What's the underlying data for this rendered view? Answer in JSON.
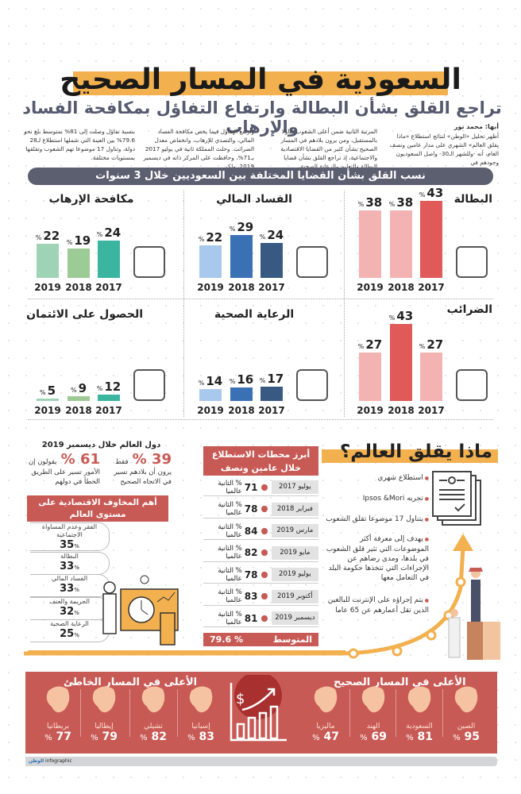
{
  "header": {
    "title": "السعودية في المسار الصحيح",
    "subtitle": "تراجع القلق بشأن البطالة وارتفاع التفاؤل بمكافحة الفساد والإرهاب"
  },
  "article": {
    "byline": "أبها: محمد نور",
    "paragraphs": [
      "أظهر تحليل «الوطن» لنتائج استطلاع «ماذا يقلق العالم» الشهري على مدار عامين ونصف العام، أنه -وللشهر الـ30- واصل السعوديون وجودهم في",
      "المرتبة الثانية ضمن أعلى الشعوب تفاؤلا بالمستقبل، ومن يرون بلادهم في المسار الصحيح بشأن كثير من القضايا الاقتصادية والاجتماعية، إذ تراجع القلق بشأن قضايا البطالة والتعليم والرعاية الصحية،",
      "وارتفع التفاؤل فيما يخص مكافحة الفساد المالي، والتصدي للإرهاب، وانخفاض معدل الضرائب. وحلت المملكة ثانية في يوليو 2017 بـ71%، وحافظت على المركز ذاته في ديسمبر 2019، ولكن",
      "بنسبة تفاؤل وصلت إلى 81% بمتوسط بلغ نحو 79.6% بين العينة التي شملها استطلاع لـ28 دولة، وتناول 17 موضوعا تهم الشعوب وتقلقها بمستويات مختلفة."
    ]
  },
  "chart_section_title": "نسب القلق بشأن القضايا المختلفة بين السعوديين خلال 3 سنوات",
  "chart_data": [
    {
      "type": "bar",
      "title": "البطالة",
      "categories": [
        "2019",
        "2018",
        "2017"
      ],
      "values": [
        38,
        38,
        43
      ],
      "unit": "%",
      "colors": [
        "#f4b3b3",
        "#f4b3b3",
        "#e05a5a"
      ],
      "icon": "office-worker-icon"
    },
    {
      "type": "bar",
      "title": "الفساد المالي",
      "categories": [
        "2019",
        "2018",
        "2017"
      ],
      "values": [
        22,
        29,
        24
      ],
      "unit": "%",
      "colors": [
        "#a8c9ec",
        "#3a70b4",
        "#385a82"
      ],
      "icon": "handcuffs-money-bag-icon"
    },
    {
      "type": "bar",
      "title": "مكافحة الإرهاب",
      "categories": [
        "2019",
        "2018",
        "2017"
      ],
      "values": [
        22,
        19,
        24
      ],
      "unit": "%",
      "colors": [
        "#9fd3b5",
        "#9ccb95",
        "#3bb5a0"
      ],
      "icon": "terrorist-dynamite-icon"
    },
    {
      "type": "bar",
      "title": "الضرائب",
      "categories": [
        "2019",
        "2018",
        "2017"
      ],
      "values": [
        27,
        43,
        27
      ],
      "unit": "%",
      "colors": [
        "#f4b3b3",
        "#e05a5a",
        "#f4b3b3"
      ],
      "icon": "tax-document-icon"
    },
    {
      "type": "bar",
      "title": "الرعاية الصحية",
      "categories": [
        "2019",
        "2018",
        "2017"
      ],
      "values": [
        14,
        16,
        17
      ],
      "unit": "%",
      "colors": [
        "#a8c9ec",
        "#3a70b4",
        "#385a82"
      ],
      "icon": "stethoscope-icon"
    },
    {
      "type": "bar",
      "title": "الحصول على الائتمان",
      "categories": [
        "2019",
        "2018",
        "2017"
      ],
      "values": [
        5,
        9,
        12
      ],
      "unit": "%",
      "colors": [
        "#9fd3b5",
        "#9ccb95",
        "#3bb5a0"
      ],
      "icon": "credit-card-coin-icon"
    }
  ],
  "world": {
    "title": "ماذا يقلق العالم؟",
    "bullets": [
      "استطلاع شهري",
      "تجريه Ipsos &Mori",
      "يتناول 17 موضوعا تقلق الشعوب",
      "يهدف إلى معرفة أكثر الموضوعات التي تثير قلق الشعوب في بلدها، ومدى رضاهم عن الإجراءات التي تتخذها حكومة البلد في التعامل معها",
      "يتم إجراؤه على الإنترنت للبالغين الذين تقل أعمارهم عن 65 عاما"
    ]
  },
  "survey_table": {
    "title": "أبرز محطات الاستطلاع خلال عامين ونصف",
    "suffix": "% الثانية عالميا",
    "rows": [
      {
        "date": "يوليو 2017",
        "value": "71"
      },
      {
        "date": "فبراير 2018",
        "value": "78"
      },
      {
        "date": "مارس 2019",
        "value": "84"
      },
      {
        "date": "مايو 2019",
        "value": "82"
      },
      {
        "date": "يوليو 2019",
        "value": "78"
      },
      {
        "date": "أكتوبر 2019",
        "value": "83"
      },
      {
        "date": "ديسمبر 2019",
        "value": "81"
      }
    ],
    "average_label": "المتوسط",
    "average_value": "% 79.6"
  },
  "december": {
    "title": "دول العالم خلال ديسمبر 2019",
    "right": {
      "value": "39 %",
      "label": "فقط",
      "text1": "يرون أن بلادهم تسير",
      "text2": "في الاتجاه الصحيح"
    },
    "left": {
      "value": "61 %",
      "label": "يقولون إن",
      "text1": "الأمور تسير على الطريق",
      "text2": "الخطأ في دولهم"
    }
  },
  "econ_fears": {
    "title": "أهم المخاوف الاقتصادية على مستوى العالم",
    "items": [
      {
        "label": "الفقر وعدم المساواة الاجتماعية",
        "value": "35"
      },
      {
        "label": "البطالة",
        "value": "33"
      },
      {
        "label": "الفساد المالي",
        "value": "33"
      },
      {
        "label": "الجريمة والعنف",
        "value": "32"
      },
      {
        "label": "الرعاية الصحية",
        "value": "25"
      }
    ]
  },
  "countries": {
    "right_title": "الأعلى في المسار الصحيح",
    "left_title": "الأعلى في المسار الخاطئ",
    "right": [
      {
        "name": "الصين",
        "value": "95"
      },
      {
        "name": "السعودية",
        "value": "81"
      },
      {
        "name": "الهند",
        "value": "69"
      },
      {
        "name": "ماليزيا",
        "value": "47"
      }
    ],
    "left": [
      {
        "name": "إسبانيا",
        "value": "83"
      },
      {
        "name": "تشيلي",
        "value": "82"
      },
      {
        "name": "إيطاليا",
        "value": "79"
      },
      {
        "name": "بريطانيا",
        "value": "77"
      }
    ]
  },
  "footer": {
    "brand": "الوطن",
    "label": "infographic"
  },
  "colors": {
    "accent": "#f3b04f",
    "red": "#c85a55",
    "slate": "#5c5f70",
    "map": "#f5c3a2"
  }
}
